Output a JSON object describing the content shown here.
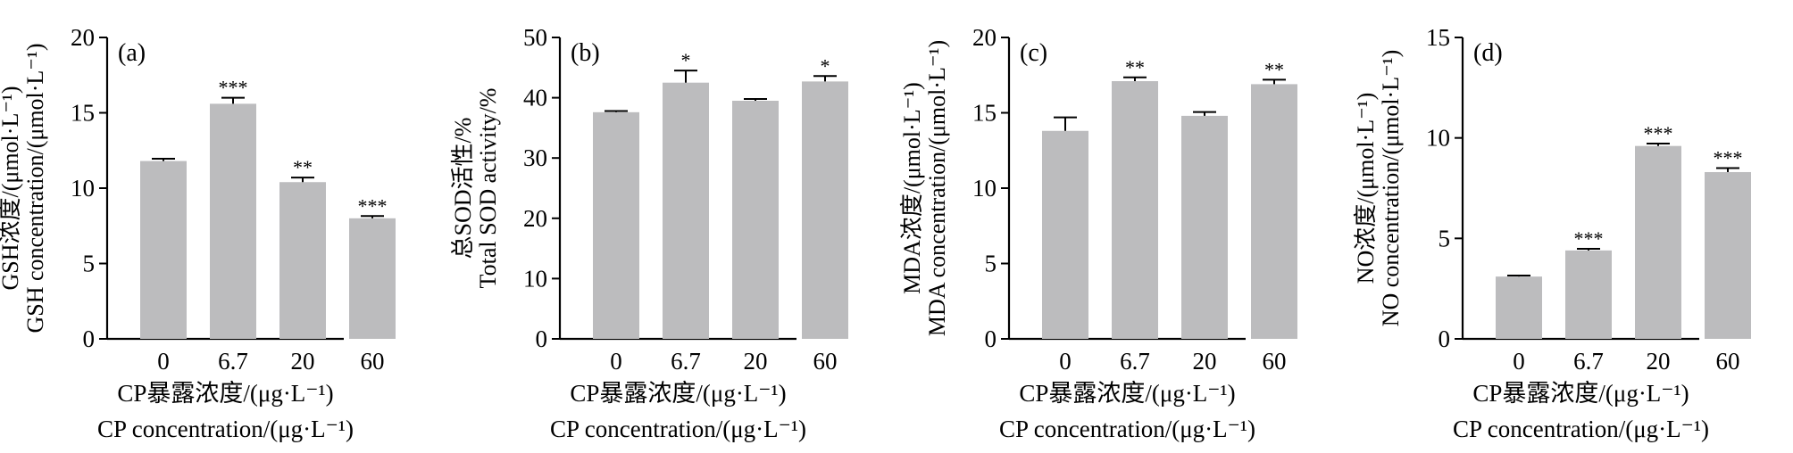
{
  "figure": {
    "xlabel_cn": "CP暴露浓度/(μg·L⁻¹)",
    "xlabel_en": "CP concentration/(μg·L⁻¹)"
  },
  "colors": {
    "bar": "#bcbcbe",
    "axis": "#000000"
  },
  "chart_data": [
    {
      "type": "bar",
      "panel_label": "(a)",
      "ylabel_cn": "GSH浓度/(μmol·L⁻¹)",
      "ylabel_en": "GSH concentration/(μmol·L⁻¹)",
      "xlabel_cn": "CP暴露浓度/(μg·L⁻¹)",
      "xlabel_en": "CP concentration/(μg·L⁻¹)",
      "categories": [
        "0",
        "6.7",
        "20",
        "60"
      ],
      "values": [
        11.8,
        15.6,
        10.4,
        8.0
      ],
      "errors": [
        0.15,
        0.4,
        0.3,
        0.15
      ],
      "significance": [
        "",
        "***",
        "**",
        "***"
      ],
      "ylim": [
        0,
        20
      ],
      "yticks": [
        0,
        5,
        10,
        15,
        20
      ]
    },
    {
      "type": "bar",
      "panel_label": "(b)",
      "ylabel_cn": "总SOD活性/%",
      "ylabel_en": "Total SOD activity/%",
      "xlabel_cn": "CP暴露浓度/(μg·L⁻¹)",
      "xlabel_en": "CP concentration/(μg·L⁻¹)",
      "categories": [
        "0",
        "6.7",
        "20",
        "60"
      ],
      "values": [
        37.6,
        42.5,
        39.5,
        42.7
      ],
      "errors": [
        0.2,
        2.0,
        0.3,
        0.9
      ],
      "significance": [
        "",
        "*",
        "",
        "*"
      ],
      "ylim": [
        0,
        50
      ],
      "yticks": [
        0,
        10,
        20,
        30,
        40,
        50
      ]
    },
    {
      "type": "bar",
      "panel_label": "(c)",
      "ylabel_cn": "MDA浓度/(μmol·L⁻¹)",
      "ylabel_en": "MDA concentration/(μmol·L⁻¹)",
      "xlabel_cn": "CP暴露浓度/(μg·L⁻¹)",
      "xlabel_en": "CP concentration/(μg·L⁻¹)",
      "categories": [
        "0",
        "6.7",
        "20",
        "60"
      ],
      "values": [
        13.8,
        17.1,
        14.8,
        16.9
      ],
      "errors": [
        0.9,
        0.25,
        0.25,
        0.3
      ],
      "significance": [
        "",
        "**",
        "",
        "**"
      ],
      "ylim": [
        0,
        20
      ],
      "yticks": [
        0,
        5,
        10,
        15,
        20
      ]
    },
    {
      "type": "bar",
      "panel_label": "(d)",
      "ylabel_cn": "NO浓度/(μmol·L⁻¹)",
      "ylabel_en": "NO concentration/(μmol·L⁻¹)",
      "xlabel_cn": "CP暴露浓度/(μg·L⁻¹)",
      "xlabel_en": "CP concentration/(μg·L⁻¹)",
      "categories": [
        "0",
        "6.7",
        "20",
        "60"
      ],
      "values": [
        3.1,
        4.4,
        9.6,
        8.3
      ],
      "errors": [
        0.05,
        0.08,
        0.12,
        0.2
      ],
      "significance": [
        "",
        "***",
        "***",
        "***"
      ],
      "ylim": [
        0,
        15
      ],
      "yticks": [
        0,
        5,
        10,
        15
      ]
    }
  ]
}
